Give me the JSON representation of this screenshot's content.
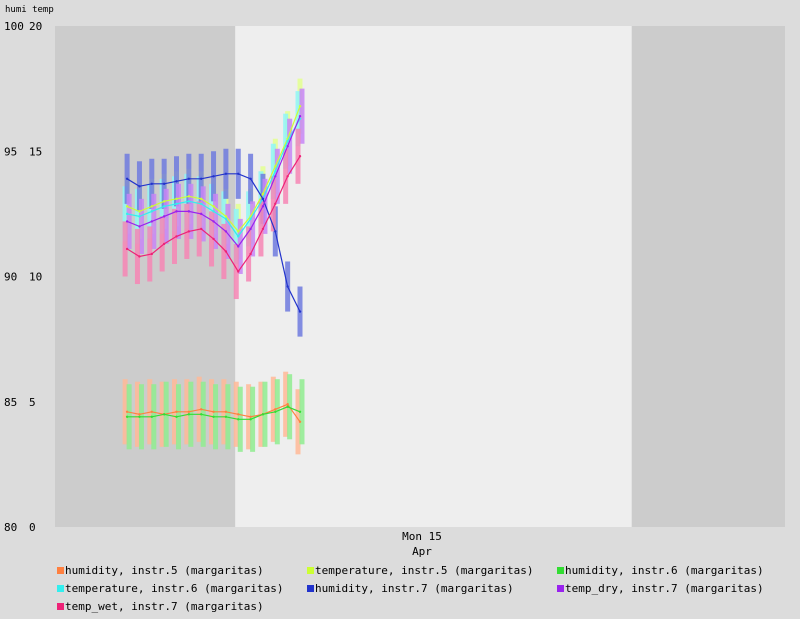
{
  "chart_data": {
    "type": "line",
    "title": "humi temp",
    "axes": {
      "left_humi": {
        "ticks": [
          "100",
          "95",
          "90",
          "85",
          "80"
        ],
        "ylim": [
          80,
          100
        ]
      },
      "right_temp": {
        "ticks": [
          "20",
          "15",
          "10",
          "5",
          "0"
        ],
        "ylim": [
          0,
          20
        ]
      }
    },
    "x_label_date": "Mon 15",
    "x_label_month": "Apr",
    "shading": {
      "night_before_hours": 10,
      "day_hours": 22,
      "night_after_hours": 8.5,
      "total_hours": 40.5
    },
    "series": [
      {
        "name": "humidity, instr.5 (margaritas)",
        "axis": "humi",
        "color": "#ff8040",
        "x": [
          0,
          1,
          2,
          3,
          4,
          5,
          6,
          7,
          8,
          9,
          10,
          11,
          12,
          13,
          14
        ],
        "y": [
          84.6,
          84.5,
          84.6,
          84.5,
          84.6,
          84.6,
          84.7,
          84.6,
          84.6,
          84.5,
          84.4,
          84.5,
          84.7,
          84.9,
          84.2
        ]
      },
      {
        "name": "temperature, instr.5 (margaritas)",
        "axis": "temp",
        "color": "#ccff33",
        "x": [
          0,
          1,
          2,
          3,
          4,
          5,
          6,
          7,
          8,
          9,
          10,
          11,
          12,
          13,
          14
        ],
        "y": [
          12.8,
          12.6,
          12.8,
          13.0,
          13.1,
          13.2,
          13.1,
          12.8,
          12.4,
          11.8,
          12.4,
          13.3,
          14.4,
          15.5,
          16.8
        ]
      },
      {
        "name": "humidity, instr.6 (margaritas)",
        "axis": "humi",
        "color": "#33dd33",
        "x": [
          0,
          1,
          2,
          3,
          4,
          5,
          6,
          7,
          8,
          9,
          10,
          11,
          12,
          13,
          14
        ],
        "y": [
          84.4,
          84.4,
          84.4,
          84.5,
          84.4,
          84.5,
          84.5,
          84.4,
          84.4,
          84.3,
          84.3,
          84.5,
          84.6,
          84.8,
          84.6
        ]
      },
      {
        "name": "temperature, instr.6 (margaritas)",
        "axis": "temp",
        "color": "#33eeee",
        "x": [
          0,
          1,
          2,
          3,
          4,
          5,
          6,
          7,
          8,
          9,
          10,
          11,
          12,
          13,
          14
        ],
        "y": [
          12.5,
          12.4,
          12.6,
          12.8,
          12.9,
          13.0,
          12.9,
          12.6,
          12.3,
          11.6,
          12.3,
          13.1,
          14.2,
          15.4,
          16.3
        ]
      },
      {
        "name": "humidity, instr.7 (margaritas)",
        "axis": "humi",
        "color": "#2233cc",
        "x": [
          0,
          1,
          2,
          3,
          4,
          5,
          6,
          7,
          8,
          9,
          10,
          11,
          12,
          13,
          14
        ],
        "y": [
          93.9,
          93.6,
          93.7,
          93.7,
          93.8,
          93.9,
          93.9,
          94.0,
          94.1,
          94.1,
          93.9,
          93.1,
          91.8,
          89.6,
          88.6
        ]
      },
      {
        "name": "temp_dry, instr.7 (margaritas)",
        "axis": "temp",
        "color": "#9922ee",
        "x": [
          0,
          1,
          2,
          3,
          4,
          5,
          6,
          7,
          8,
          9,
          10,
          11,
          12,
          13,
          14
        ],
        "y": [
          12.2,
          12.0,
          12.2,
          12.4,
          12.6,
          12.6,
          12.5,
          12.2,
          11.8,
          11.2,
          11.9,
          12.8,
          14.0,
          15.2,
          16.4
        ]
      },
      {
        "name": "temp_wet, instr.7 (margaritas)",
        "axis": "temp",
        "color": "#ee2277",
        "x": [
          0,
          1,
          2,
          3,
          4,
          5,
          6,
          7,
          8,
          9,
          10,
          11,
          12,
          13,
          14
        ],
        "y": [
          11.1,
          10.8,
          10.9,
          11.3,
          11.6,
          11.8,
          11.9,
          11.5,
          11.0,
          10.2,
          10.9,
          11.9,
          12.9,
          14.0,
          14.8
        ]
      }
    ]
  }
}
